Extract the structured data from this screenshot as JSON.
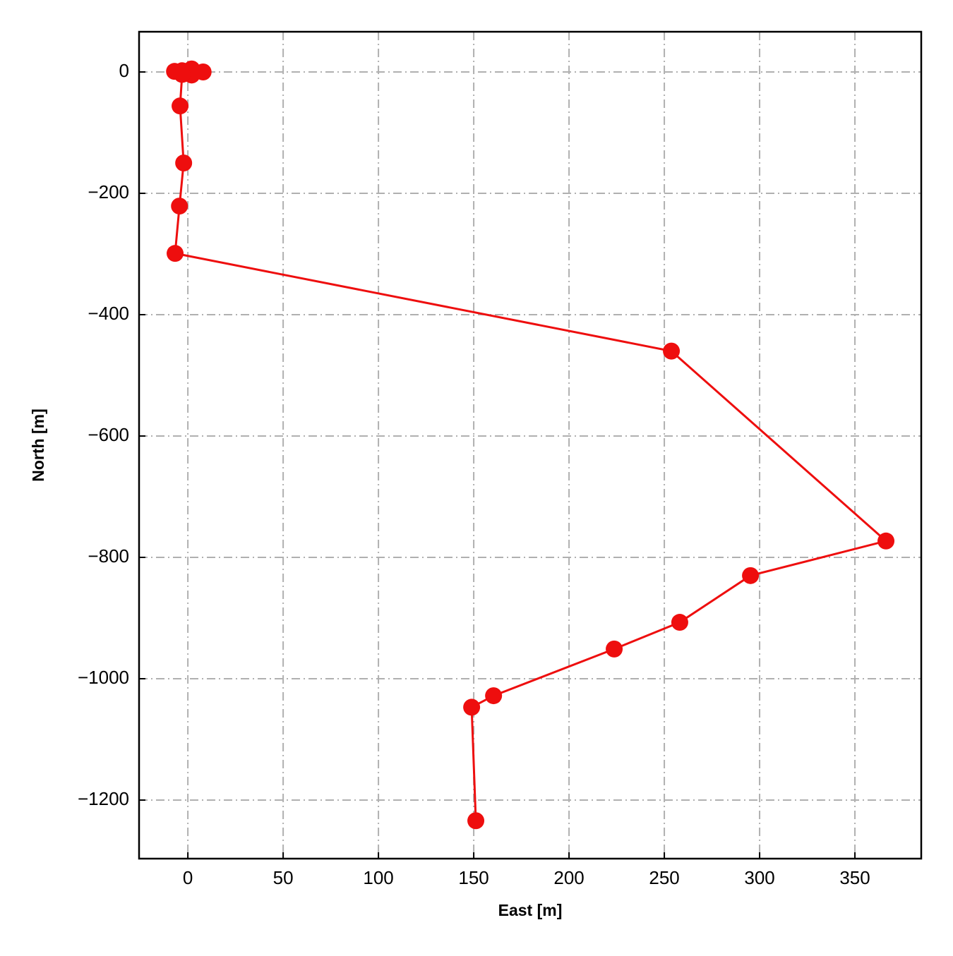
{
  "chart_data": {
    "type": "line",
    "xlabel": "East [m]",
    "ylabel": "North [m]",
    "x": [
      0,
      -7,
      -3,
      2,
      8,
      2,
      -3,
      -4.1,
      -2.2,
      -4.4,
      -6.7,
      253.7,
      366.3,
      295.2,
      258.1,
      223.7,
      160.4,
      148.9,
      151.1
    ],
    "values": [
      0,
      1,
      2,
      5,
      0,
      -5,
      -4,
      -56,
      -150,
      -221,
      -299,
      -460,
      -773,
      -830,
      -907,
      -951,
      -1028,
      -1047,
      -1234
    ],
    "color": "#ee0e0e",
    "marker": true,
    "xlim": [
      -25.6,
      384.8
    ],
    "ylim": [
      -1296.5,
      66.3
    ],
    "xticks": [
      0,
      50,
      100,
      150,
      200,
      250,
      300,
      350
    ],
    "yticks": [
      {
        "value": -1200,
        "label": "−1200"
      },
      {
        "value": -1000,
        "label": "−1000"
      },
      {
        "value": -800,
        "label": "−800"
      },
      {
        "value": -600,
        "label": "−600"
      },
      {
        "value": -400,
        "label": "−400"
      },
      {
        "value": -200,
        "label": "−200"
      },
      0
    ],
    "grid": true
  }
}
